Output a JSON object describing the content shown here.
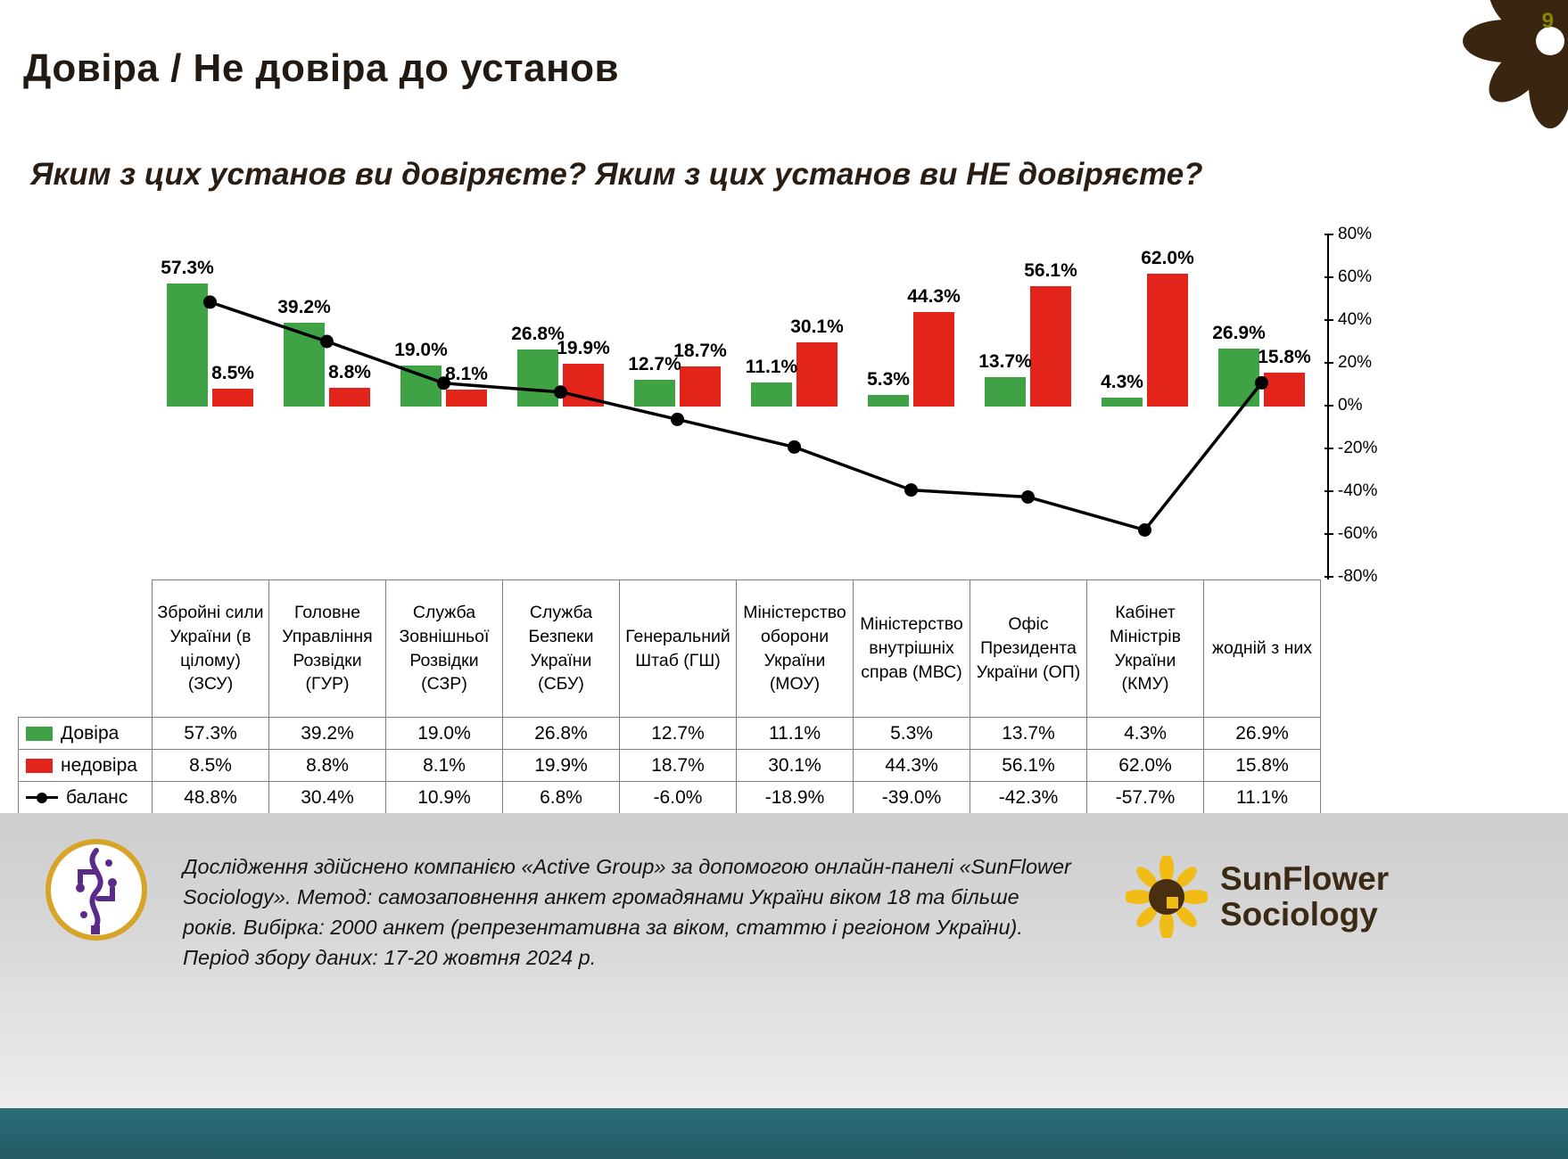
{
  "page": {
    "number": "9",
    "title": "Довіра / Не довіра до установ",
    "subtitle": "Яким з цих установ ви довіряєте? Яким з цих установ ви НЕ довіряєте?",
    "footer_text": "Дослідження здійснено компанією «Active Group» за допомогою онлайн-панелі «SunFlower Sociology». Метод: самозаповнення анкет громадянами України віком 18 та більше років. Вибірка: 2000 анкет (репрезентативна за віком, статтю і регіоном України). Період збору даних: 17-20 жовтня 2024 р.",
    "brand": {
      "line1": "SunFlower",
      "line2": "Sociology"
    }
  },
  "colors": {
    "trust_green": "#3FA346",
    "distrust_red": "#E2241A",
    "balance_black": "#000000",
    "teal_bar": "#266672",
    "flower_brown": "#3A2511"
  },
  "chart_data": {
    "type": "bar",
    "subtype": "grouped bars with balance line overlay",
    "categories": [
      "Збройні сили України (в цілому) (ЗСУ)",
      "Головне Управління Розвідки (ГУР)",
      "Служба Зовнішньої Розвідки (СЗР)",
      "Служба Безпеки України (СБУ)",
      "Генеральний Штаб (ГШ)",
      "Міністерство оборони України (МОУ)",
      "Міністерство внутрішніх справ (МВС)",
      "Офіс Президента України (ОП)",
      "Кабінет Міністрів України (КМУ)",
      "жодній з них"
    ],
    "series": [
      {
        "name": "Довіра",
        "kind": "bar",
        "color": "#3FA346",
        "values": [
          57.3,
          39.2,
          19.0,
          26.8,
          12.7,
          11.1,
          5.3,
          13.7,
          4.3,
          26.9
        ],
        "labels": [
          "57.3%",
          "39.2%",
          "19.0%",
          "26.8%",
          "12.7%",
          "11.1%",
          "5.3%",
          "13.7%",
          "4.3%",
          "26.9%"
        ]
      },
      {
        "name": "недовіра",
        "kind": "bar",
        "color": "#E2241A",
        "values": [
          8.5,
          8.8,
          8.1,
          19.9,
          18.7,
          30.1,
          44.3,
          56.1,
          62.0,
          15.8
        ],
        "labels": [
          "8.5%",
          "8.8%",
          "8.1%",
          "19.9%",
          "18.7%",
          "30.1%",
          "44.3%",
          "56.1%",
          "62.0%",
          "15.8%"
        ]
      },
      {
        "name": "баланс",
        "kind": "line",
        "color": "#000000",
        "values": [
          48.8,
          30.4,
          10.9,
          6.8,
          -6.0,
          -18.9,
          -39.0,
          -42.3,
          -57.7,
          11.1
        ],
        "labels": [
          "48.8%",
          "30.4%",
          "10.9%",
          "6.8%",
          "-6.0%",
          "-18.9%",
          "-39.0%",
          "-42.3%",
          "-57.7%",
          "11.1%"
        ]
      }
    ],
    "ylim": [
      -80,
      80
    ],
    "ytick_labels": [
      "80%",
      "60%",
      "40%",
      "20%",
      "0%",
      "-20%",
      "-40%",
      "-60%",
      "-80%"
    ],
    "grid": false,
    "value_labels_on_bars": true,
    "legend_position": "table rows, left column"
  }
}
